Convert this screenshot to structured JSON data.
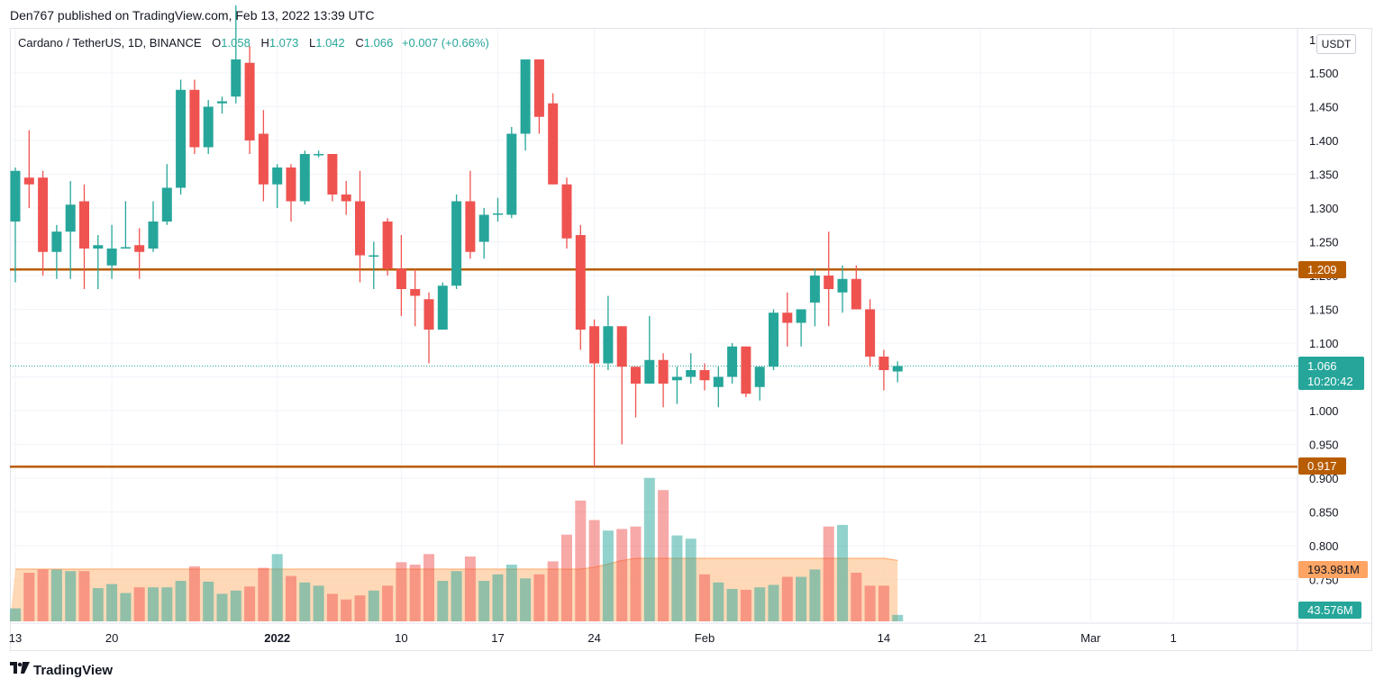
{
  "header": {
    "published_text": "Den767 published on TradingView.com, Feb 13, 2022 13:39 UTC"
  },
  "legend": {
    "symbol": "Cardano / TetherUS, 1D, BINANCE",
    "open_label": "O",
    "open": "1.058",
    "high_label": "H",
    "high": "1.073",
    "low_label": "L",
    "low": "1.042",
    "close_label": "C",
    "close": "1.066",
    "change": "+0.007 (+0.66%)"
  },
  "price_scale": {
    "unit_button": "USDT"
  },
  "tags": {
    "resistance": "1.209",
    "support": "0.917",
    "last_price": "1.066",
    "countdown": "10:20:42",
    "volume_ma": "193.981M",
    "volume_last": "43.576M"
  },
  "footer": {
    "brand": "TradingView",
    "logo_icon": "tradingview-logo-icon"
  },
  "colors": {
    "up": "#26a69a",
    "down": "#ef5350",
    "level_line": "#b85c00",
    "volume_ma_fill": "#ffcc9f"
  },
  "chart_data": {
    "type": "candlestick",
    "y_ticks": [
      "1.500",
      "1.450",
      "1.400",
      "1.350",
      "1.300",
      "1.250",
      "1.200",
      "1.150",
      "1.100",
      "1.050",
      "1.000",
      "0.950",
      "0.900",
      "0.850",
      "0.800",
      "0.750"
    ],
    "y_top_label": "1",
    "x_ticks": [
      {
        "label": "13",
        "day": 0
      },
      {
        "label": "20",
        "day": 7
      },
      {
        "label": "2022",
        "day": 19
      },
      {
        "label": "10",
        "day": 28
      },
      {
        "label": "17",
        "day": 35
      },
      {
        "label": "24",
        "day": 42
      },
      {
        "label": "Feb",
        "day": 50
      },
      {
        "label": "14",
        "day": 63
      },
      {
        "label": "21",
        "day": 70
      },
      {
        "label": "Mar",
        "day": 78
      },
      {
        "label": "1",
        "day": 84
      }
    ],
    "levels": [
      1.209,
      0.917
    ],
    "last_price": 1.066,
    "ohlc": [
      [
        1.28,
        1.36,
        1.19,
        1.355
      ],
      [
        1.345,
        1.415,
        1.3,
        1.335
      ],
      [
        1.345,
        1.355,
        1.2,
        1.235
      ],
      [
        1.235,
        1.275,
        1.195,
        1.265
      ],
      [
        1.265,
        1.34,
        1.195,
        1.305
      ],
      [
        1.31,
        1.335,
        1.18,
        1.24
      ],
      [
        1.24,
        1.26,
        1.18,
        1.245
      ],
      [
        1.215,
        1.275,
        1.195,
        1.24
      ],
      [
        1.24,
        1.31,
        1.24,
        1.242
      ],
      [
        1.245,
        1.27,
        1.195,
        1.235
      ],
      [
        1.24,
        1.31,
        1.235,
        1.28
      ],
      [
        1.28,
        1.365,
        1.275,
        1.33
      ],
      [
        1.33,
        1.49,
        1.32,
        1.475
      ],
      [
        1.475,
        1.49,
        1.38,
        1.39
      ],
      [
        1.39,
        1.46,
        1.38,
        1.45
      ],
      [
        1.455,
        1.465,
        1.44,
        1.458
      ],
      [
        1.465,
        1.6,
        1.455,
        1.52
      ],
      [
        1.515,
        1.54,
        1.38,
        1.4
      ],
      [
        1.41,
        1.445,
        1.31,
        1.335
      ],
      [
        1.335,
        1.365,
        1.3,
        1.36
      ],
      [
        1.36,
        1.365,
        1.28,
        1.31
      ],
      [
        1.31,
        1.385,
        1.305,
        1.38
      ],
      [
        1.38,
        1.385,
        1.375,
        1.38
      ],
      [
        1.38,
        1.38,
        1.31,
        1.32
      ],
      [
        1.32,
        1.34,
        1.29,
        1.31
      ],
      [
        1.31,
        1.355,
        1.19,
        1.23
      ],
      [
        1.23,
        1.25,
        1.18,
        1.23
      ],
      [
        1.28,
        1.285,
        1.2,
        1.21
      ],
      [
        1.21,
        1.26,
        1.14,
        1.18
      ],
      [
        1.18,
        1.21,
        1.125,
        1.17
      ],
      [
        1.165,
        1.175,
        1.07,
        1.12
      ],
      [
        1.12,
        1.19,
        1.12,
        1.185
      ],
      [
        1.185,
        1.32,
        1.18,
        1.31
      ],
      [
        1.31,
        1.355,
        1.225,
        1.235
      ],
      [
        1.25,
        1.3,
        1.225,
        1.29
      ],
      [
        1.292,
        1.315,
        1.28,
        1.292
      ],
      [
        1.29,
        1.42,
        1.285,
        1.41
      ],
      [
        1.41,
        1.52,
        1.385,
        1.52
      ],
      [
        1.52,
        1.52,
        1.41,
        1.435
      ],
      [
        1.455,
        1.47,
        1.335,
        1.335
      ],
      [
        1.335,
        1.345,
        1.24,
        1.255
      ],
      [
        1.26,
        1.275,
        1.09,
        1.12
      ],
      [
        1.125,
        1.135,
        0.917,
        1.07
      ],
      [
        1.07,
        1.17,
        1.06,
        1.125
      ],
      [
        1.125,
        1.125,
        0.95,
        1.065
      ],
      [
        1.065,
        1.065,
        0.99,
        1.04
      ],
      [
        1.04,
        1.14,
        1.04,
        1.075
      ],
      [
        1.075,
        1.085,
        1.005,
        1.04
      ],
      [
        1.045,
        1.065,
        1.01,
        1.05
      ],
      [
        1.05,
        1.085,
        1.04,
        1.06
      ],
      [
        1.06,
        1.07,
        1.03,
        1.045
      ],
      [
        1.035,
        1.065,
        1.005,
        1.05
      ],
      [
        1.05,
        1.1,
        1.04,
        1.095
      ],
      [
        1.095,
        1.095,
        1.02,
        1.025
      ],
      [
        1.035,
        1.065,
        1.015,
        1.065
      ],
      [
        1.065,
        1.15,
        1.06,
        1.145
      ],
      [
        1.145,
        1.175,
        1.095,
        1.13
      ],
      [
        1.13,
        1.15,
        1.095,
        1.15
      ],
      [
        1.16,
        1.21,
        1.125,
        1.2
      ],
      [
        1.2,
        1.265,
        1.125,
        1.18
      ],
      [
        1.175,
        1.215,
        1.145,
        1.195
      ],
      [
        1.195,
        1.215,
        1.15,
        1.15
      ],
      [
        1.15,
        1.165,
        1.065,
        1.08
      ],
      [
        1.08,
        1.09,
        1.03,
        1.06
      ],
      [
        1.058,
        1.073,
        1.042,
        1.066
      ]
    ],
    "volume_ticks_M": [
      16,
      60,
      64,
      64,
      62,
      62,
      41,
      46,
      35,
      42,
      42,
      42,
      50,
      68,
      49,
      34,
      38,
      43,
      66,
      83,
      56,
      48,
      44,
      34,
      27,
      32,
      38,
      44,
      73,
      70,
      83,
      50,
      62,
      80,
      50,
      58,
      70,
      53,
      58,
      74,
      107,
      149,
      125,
      112,
      114,
      117,
      177,
      162,
      106,
      102,
      58,
      48,
      40,
      39,
      42,
      45,
      55,
      55,
      64,
      117,
      119,
      60,
      44,
      44,
      8
    ]
  }
}
